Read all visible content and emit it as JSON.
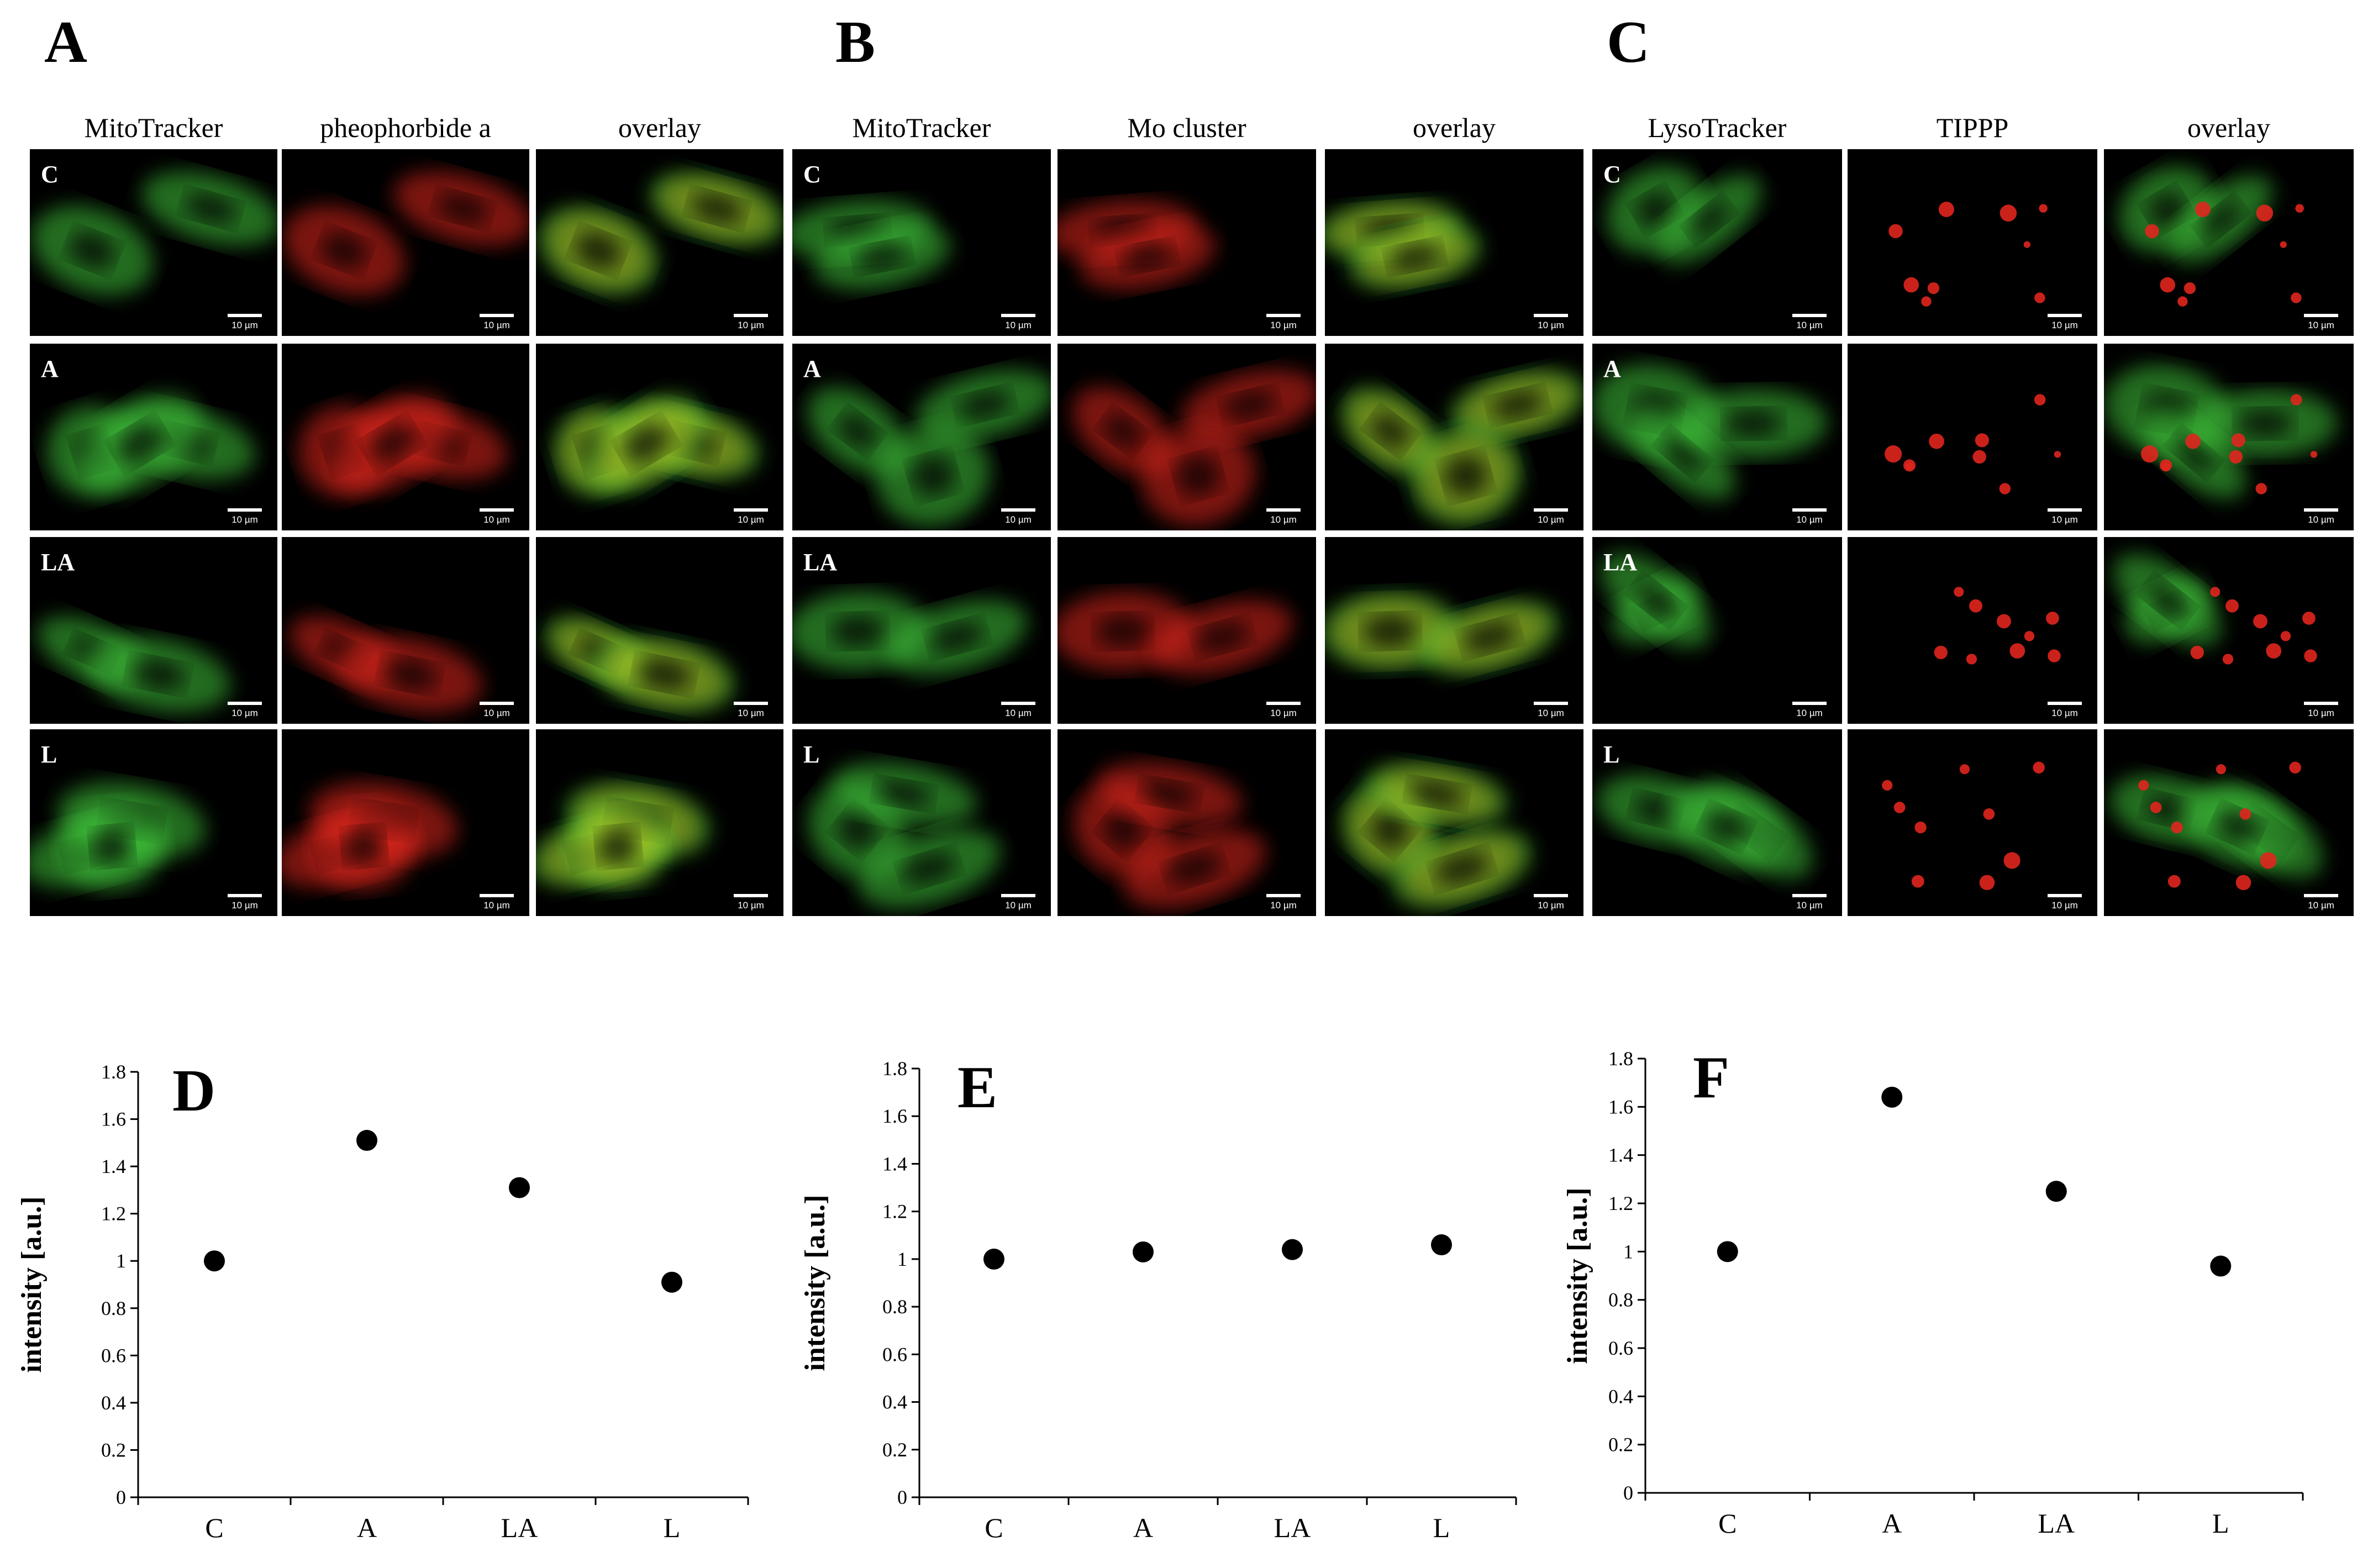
{
  "figure": {
    "panels": [
      {
        "letter": "A",
        "columns": [
          "MitoTracker",
          "pheophorbide a",
          "overlay"
        ],
        "rows": [
          "C",
          "A",
          "LA",
          "L"
        ],
        "scale_bar": "10 µm"
      },
      {
        "letter": "B",
        "columns": [
          "MitoTracker",
          "Mo cluster",
          "overlay"
        ],
        "rows": [
          "C",
          "A",
          "LA",
          "L"
        ],
        "scale_bar": "10 µm"
      },
      {
        "letter": "C",
        "columns": [
          "LysoTracker",
          "TIPPP",
          "overlay"
        ],
        "rows": [
          "C",
          "A",
          "LA",
          "L"
        ],
        "scale_bar": "10 µm"
      }
    ],
    "channel_colors": {
      "green": "#3fc43a",
      "red": "#e0261e",
      "yellow": "#c9c21e",
      "background": "#000000"
    }
  },
  "chart_data": [
    {
      "type": "scatter",
      "letter": "D",
      "categories": [
        "C",
        "A",
        "LA",
        "L"
      ],
      "values": [
        1.0,
        1.51,
        1.31,
        0.91
      ],
      "ylabel": "intensity [a.u.]",
      "ylim": [
        0,
        1.8
      ],
      "yticks": [
        "0",
        "0.2",
        "0.4",
        "0.6",
        "0.8",
        "1",
        "1.2",
        "1.4",
        "1.6",
        "1.8"
      ],
      "grid": false,
      "marker_color": "#000000"
    },
    {
      "type": "scatter",
      "letter": "E",
      "categories": [
        "C",
        "A",
        "LA",
        "L"
      ],
      "values": [
        1.0,
        1.03,
        1.04,
        1.06
      ],
      "ylabel": "intensity [a.u.]",
      "ylim": [
        0,
        1.8
      ],
      "yticks": [
        "0",
        "0.2",
        "0.4",
        "0.6",
        "0.8",
        "1",
        "1.2",
        "1.4",
        "1.6",
        "1.8"
      ],
      "grid": false,
      "marker_color": "#000000"
    },
    {
      "type": "scatter",
      "letter": "F",
      "categories": [
        "C",
        "A",
        "LA",
        "L"
      ],
      "values": [
        1.0,
        1.64,
        1.25,
        0.94
      ],
      "ylabel": "intensity [a.u.]",
      "ylim": [
        0,
        1.8
      ],
      "yticks": [
        "0",
        "0.2",
        "0.4",
        "0.6",
        "0.8",
        "1",
        "1.2",
        "1.4",
        "1.6",
        "1.8"
      ],
      "grid": false,
      "marker_color": "#000000"
    }
  ]
}
